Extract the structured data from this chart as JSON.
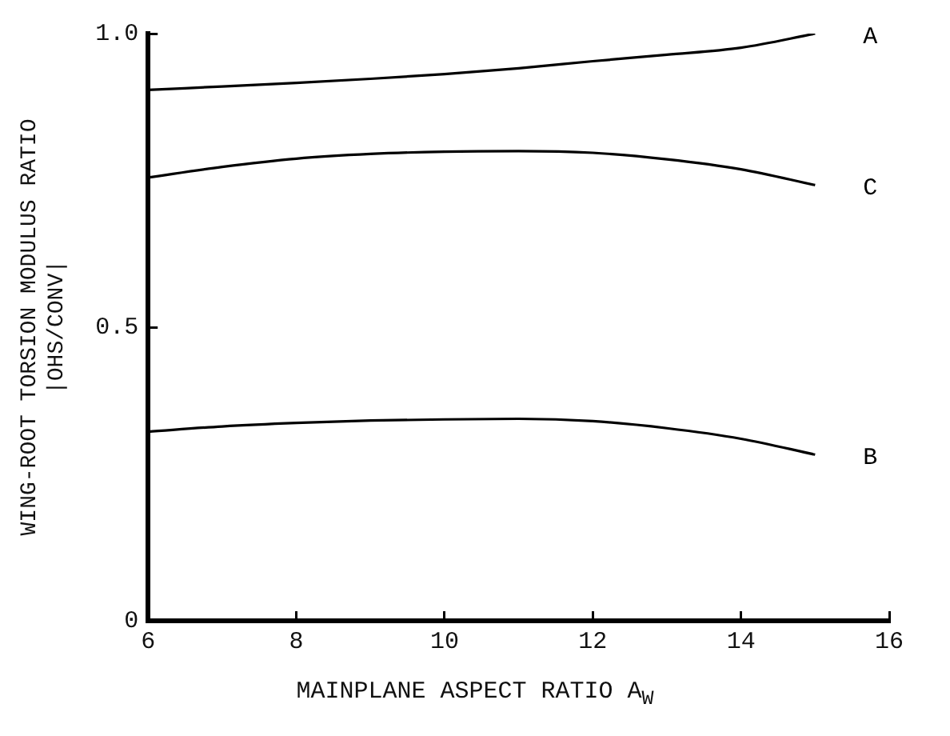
{
  "chart_data": {
    "type": "line",
    "xlabel": "MAINPLANE ASPECT RATIO A$_{W}$",
    "ylabel": "WING-ROOT TORSION MODULUS RATIO\n|OHS/CONV|",
    "x": [
      6,
      7,
      8,
      9,
      10,
      11,
      12,
      13,
      14,
      15
    ],
    "series": [
      {
        "name": "A",
        "color": "#000000",
        "values": [
          0.904,
          0.91,
          0.916,
          0.923,
          0.931,
          0.941,
          0.953,
          0.964,
          0.976,
          1.0
        ]
      },
      {
        "name": "C",
        "color": "#000000",
        "values": [
          0.755,
          0.773,
          0.787,
          0.795,
          0.799,
          0.8,
          0.797,
          0.786,
          0.769,
          0.742
        ]
      },
      {
        "name": "B",
        "color": "#000000",
        "values": [
          0.322,
          0.331,
          0.337,
          0.341,
          0.343,
          0.344,
          0.34,
          0.328,
          0.31,
          0.283
        ]
      }
    ],
    "xlim": [
      6,
      16
    ],
    "xticks": [
      6,
      8,
      10,
      12,
      14,
      16
    ],
    "ylim": [
      0,
      1
    ],
    "yticks": [
      0,
      0.5,
      {
        "value": 1,
        "label": "1.0"
      }
    ],
    "grid": false,
    "legend": false,
    "marker": "none",
    "line_style": "solid"
  }
}
